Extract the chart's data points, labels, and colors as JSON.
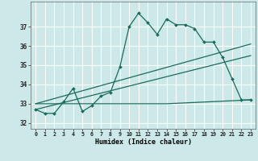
{
  "xlabel": "Humidex (Indice chaleur)",
  "ylabel": "",
  "bg_color": "#cce8e8",
  "line_color": "#1a6b5a",
  "grid_color": "#ffffff",
  "xlim": [
    -0.5,
    23.5
  ],
  "ylim": [
    31.7,
    38.3
  ],
  "yticks": [
    32,
    33,
    34,
    35,
    36,
    37
  ],
  "xticks": [
    0,
    1,
    2,
    3,
    4,
    5,
    6,
    7,
    8,
    9,
    10,
    11,
    12,
    13,
    14,
    15,
    16,
    17,
    18,
    19,
    20,
    21,
    22,
    23
  ],
  "series1_x": [
    0,
    1,
    2,
    3,
    4,
    5,
    6,
    7,
    8,
    9,
    10,
    11,
    12,
    13,
    14,
    15,
    16,
    17,
    18,
    19,
    20,
    21,
    22,
    23
  ],
  "series1_y": [
    32.7,
    32.5,
    32.5,
    33.1,
    33.8,
    32.6,
    32.9,
    33.4,
    33.6,
    34.9,
    37.0,
    37.7,
    37.2,
    36.6,
    37.4,
    37.1,
    37.1,
    36.9,
    36.2,
    36.2,
    35.4,
    34.3,
    33.2,
    33.2
  ],
  "series2_x": [
    0,
    14,
    23
  ],
  "series2_y": [
    33.0,
    33.0,
    33.2
  ],
  "series3_x": [
    0,
    23
  ],
  "series3_y": [
    32.7,
    35.5
  ],
  "series4_x": [
    0,
    23
  ],
  "series4_y": [
    33.0,
    36.1
  ]
}
